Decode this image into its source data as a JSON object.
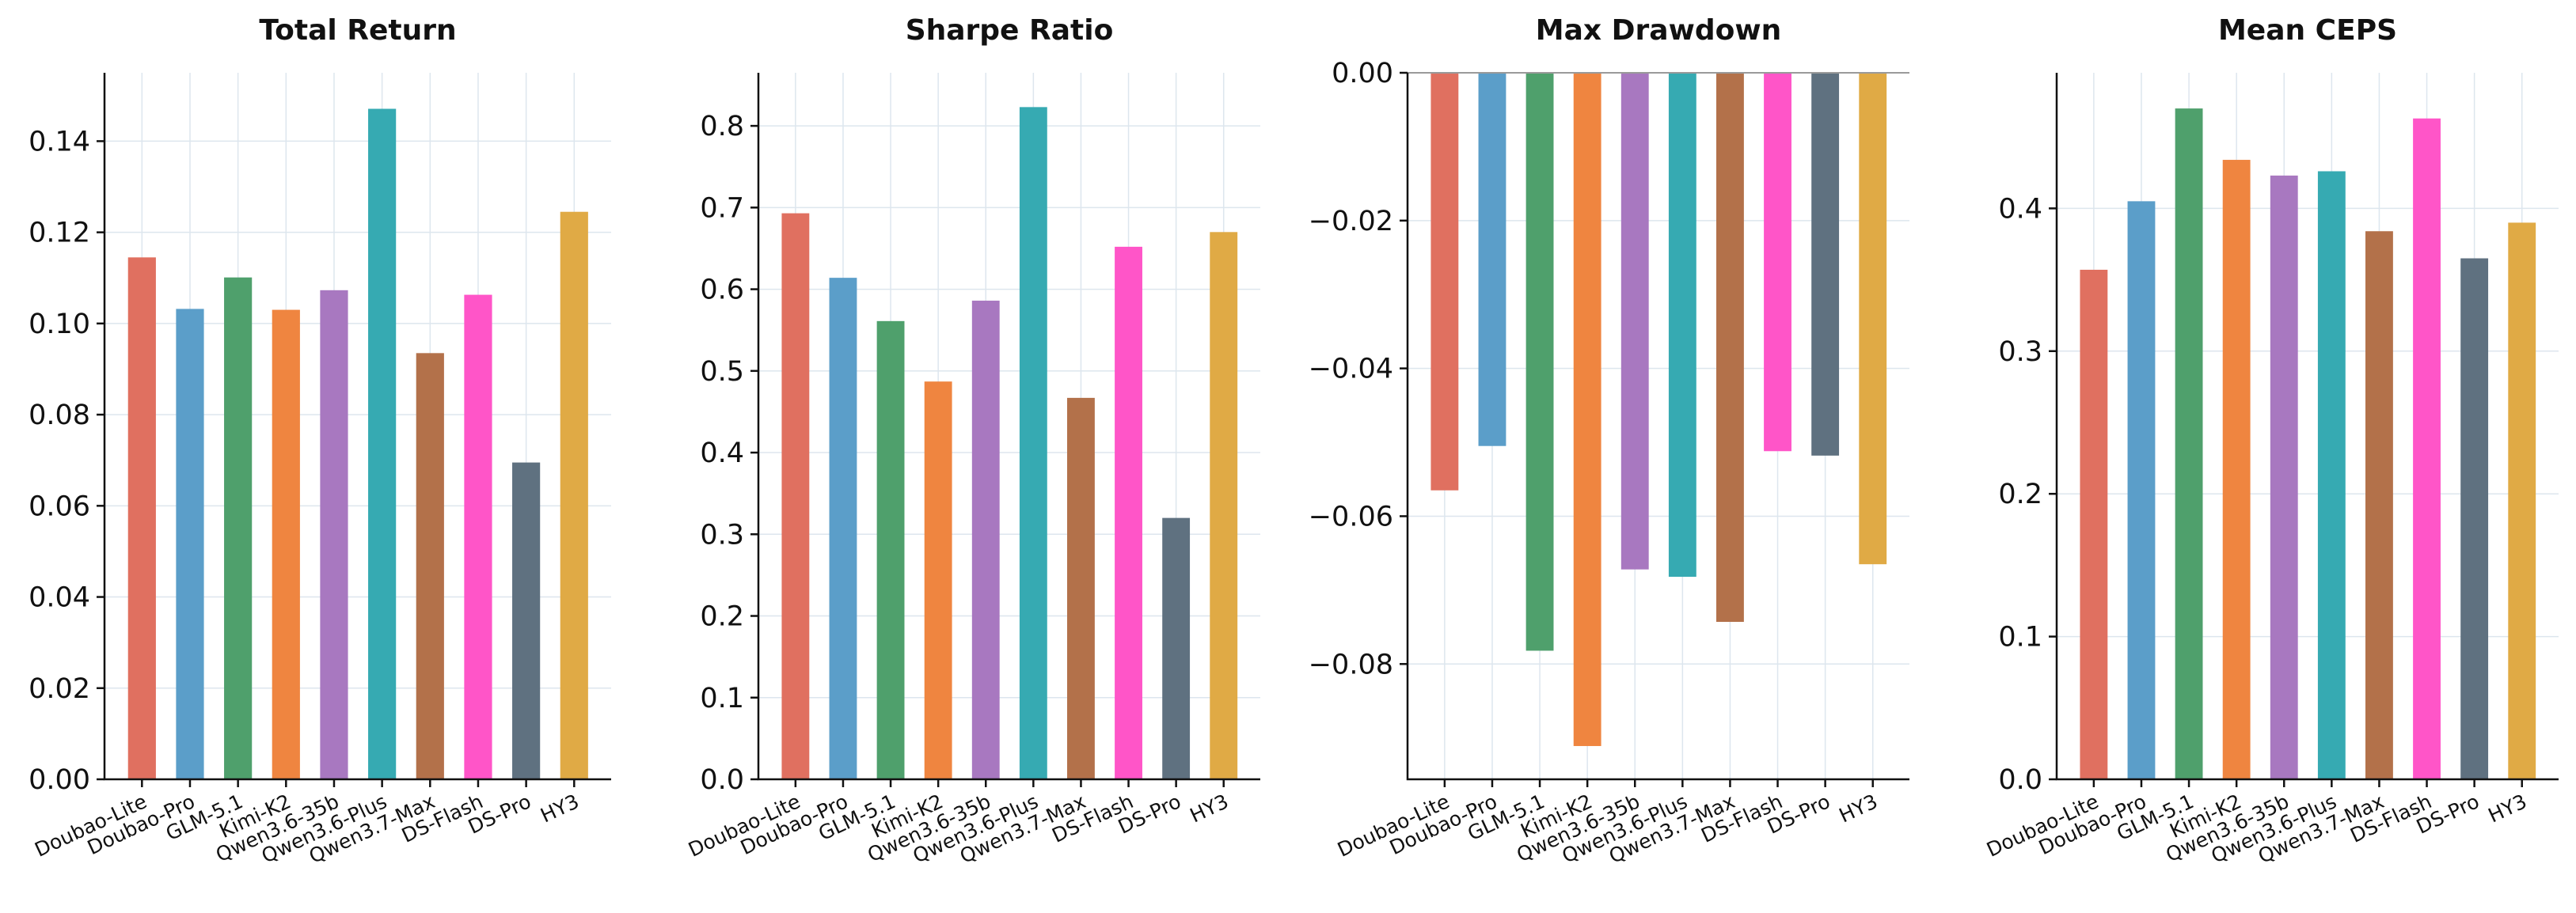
{
  "chart_data": [
    {
      "type": "bar",
      "title": "Total Return",
      "categories": [
        "Doubao-Lite",
        "Doubao-Pro",
        "GLM-5.1",
        "Kimi-K2",
        "Qwen3.6-35b",
        "Qwen3.6-Plus",
        "Qwen3.7-Max",
        "DS-Flash",
        "DS-Pro",
        "HY3"
      ],
      "values": [
        0.1145,
        0.1032,
        0.1101,
        0.103,
        0.1073,
        0.1471,
        0.0935,
        0.1063,
        0.0695,
        0.1245
      ],
      "ylim": [
        0,
        0.155
      ],
      "yticks": [
        0.0,
        0.02,
        0.04,
        0.06,
        0.08,
        0.1,
        0.12,
        0.14
      ],
      "ytick_labels": [
        "0.00",
        "0.02",
        "0.04",
        "0.06",
        "0.08",
        "0.10",
        "0.12",
        "0.14"
      ],
      "grid": true
    },
    {
      "type": "bar",
      "title": "Sharpe Ratio",
      "categories": [
        "Doubao-Lite",
        "Doubao-Pro",
        "GLM-5.1",
        "Kimi-K2",
        "Qwen3.6-35b",
        "Qwen3.6-Plus",
        "Qwen3.7-Max",
        "DS-Flash",
        "DS-Pro",
        "HY3"
      ],
      "values": [
        0.693,
        0.614,
        0.561,
        0.487,
        0.586,
        0.823,
        0.467,
        0.652,
        0.32,
        0.67
      ],
      "ylim": [
        0,
        0.865
      ],
      "yticks": [
        0.0,
        0.1,
        0.2,
        0.3,
        0.4,
        0.5,
        0.6,
        0.7,
        0.8
      ],
      "ytick_labels": [
        "0.0",
        "0.1",
        "0.2",
        "0.3",
        "0.4",
        "0.5",
        "0.6",
        "0.7",
        "0.8"
      ],
      "grid": true
    },
    {
      "type": "bar",
      "title": "Max Drawdown",
      "categories": [
        "Doubao-Lite",
        "Doubao-Pro",
        "GLM-5.1",
        "Kimi-K2",
        "Qwen3.6-35b",
        "Qwen3.6-Plus",
        "Qwen3.7-Max",
        "DS-Flash",
        "DS-Pro",
        "HY3"
      ],
      "values": [
        -0.0565,
        -0.0505,
        -0.0782,
        -0.0911,
        -0.0672,
        -0.0682,
        -0.0743,
        -0.0512,
        -0.0518,
        -0.0665
      ],
      "ylim": [
        -0.0956,
        0
      ],
      "yticks": [
        0.0,
        -0.02,
        -0.04,
        -0.06,
        -0.08
      ],
      "ytick_labels": [
        "0.00",
        "−0.02",
        "−0.04",
        "−0.06",
        "−0.08"
      ],
      "grid": true
    },
    {
      "type": "bar",
      "title": "Mean CEPS",
      "categories": [
        "Doubao-Lite",
        "Doubao-Pro",
        "GLM-5.1",
        "Kimi-K2",
        "Qwen3.6-35b",
        "Qwen3.6-Plus",
        "Qwen3.7-Max",
        "DS-Flash",
        "DS-Pro",
        "HY3"
      ],
      "values": [
        0.357,
        0.405,
        0.47,
        0.434,
        0.423,
        0.426,
        0.384,
        0.463,
        0.365,
        0.39
      ],
      "ylim": [
        0,
        0.495
      ],
      "yticks": [
        0.0,
        0.1,
        0.2,
        0.3,
        0.4
      ],
      "ytick_labels": [
        "0.0",
        "0.1",
        "0.2",
        "0.3",
        "0.4"
      ],
      "grid": true
    }
  ],
  "colors": [
    "#e07060",
    "#5b9ec9",
    "#4fa06c",
    "#ef8540",
    "#a878c0",
    "#36aab2",
    "#b3714a",
    "#ff55c8",
    "#5f7180",
    "#e0aa45"
  ]
}
